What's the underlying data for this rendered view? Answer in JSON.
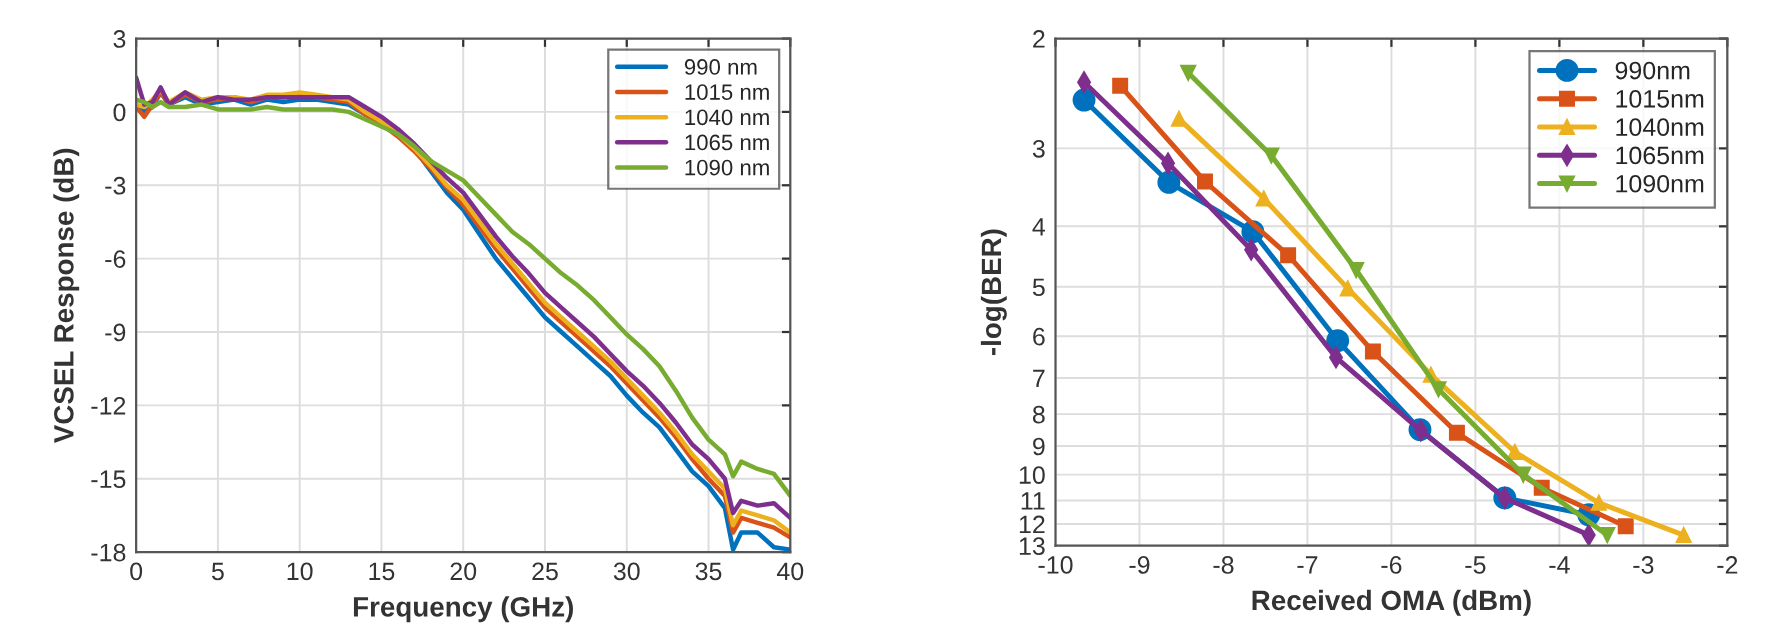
{
  "chart_data": [
    {
      "type": "line",
      "xlabel": "Frequency (GHz)",
      "ylabel": "VCSEL Response (dB)",
      "xlim": [
        0,
        40
      ],
      "xticks": [
        0,
        5,
        10,
        15,
        20,
        25,
        30,
        35,
        40
      ],
      "ylim": [
        -18,
        3
      ],
      "yticks": [
        -18,
        -15,
        -12,
        -9,
        -6,
        -3,
        0,
        3
      ],
      "grid": true,
      "legend": "top right",
      "marker": "none",
      "line_style": "solid",
      "x": [
        0,
        0.5,
        1,
        1.5,
        2,
        3,
        4,
        5,
        6,
        7,
        8,
        9,
        10,
        11,
        12,
        13,
        14,
        15,
        16,
        17,
        18,
        19,
        20,
        21,
        22,
        23,
        24,
        25,
        26,
        27,
        28,
        29,
        30,
        31,
        32,
        33,
        34,
        35,
        36,
        36.5,
        37,
        38,
        39,
        40
      ],
      "series": [
        {
          "name": "990 nm",
          "color": "#0072bd",
          "values": [
            0.3,
            0,
            0.2,
            0.8,
            0.3,
            0.6,
            0.3,
            0.4,
            0.5,
            0.3,
            0.5,
            0.4,
            0.5,
            0.5,
            0.4,
            0.3,
            -0.1,
            -0.5,
            -0.9,
            -1.5,
            -2.4,
            -3.3,
            -4.0,
            -5.0,
            -6.0,
            -6.8,
            -7.6,
            -8.4,
            -9.0,
            -9.6,
            -10.2,
            -10.8,
            -11.6,
            -12.3,
            -12.9,
            -13.8,
            -14.7,
            -15.3,
            -16.2,
            -17.9,
            -17.2,
            -17.2,
            -17.8,
            -17.9
          ]
        },
        {
          "name": "1015 nm",
          "color": "#d95319",
          "values": [
            0.2,
            -0.2,
            0.3,
            0.8,
            0.3,
            0.7,
            0.4,
            0.5,
            0.6,
            0.4,
            0.6,
            0.6,
            0.7,
            0.6,
            0.5,
            0.4,
            -0.1,
            -0.5,
            -1.0,
            -1.6,
            -2.3,
            -3.1,
            -3.8,
            -4.7,
            -5.6,
            -6.4,
            -7.2,
            -8.0,
            -8.6,
            -9.2,
            -9.8,
            -10.4,
            -11.1,
            -11.8,
            -12.5,
            -13.3,
            -14.2,
            -15.0,
            -15.7,
            -17.2,
            -16.6,
            -16.8,
            -17.0,
            -17.4
          ]
        },
        {
          "name": "1040 nm",
          "color": "#edb120",
          "values": [
            0.3,
            0.2,
            0.5,
            0.9,
            0.4,
            0.8,
            0.5,
            0.6,
            0.6,
            0.5,
            0.7,
            0.7,
            0.8,
            0.7,
            0.6,
            0.5,
            0,
            -0.4,
            -0.9,
            -1.5,
            -2.2,
            -3.0,
            -3.6,
            -4.5,
            -5.4,
            -6.2,
            -7.0,
            -7.8,
            -8.4,
            -9.0,
            -9.6,
            -10.2,
            -10.9,
            -11.6,
            -12.3,
            -13.1,
            -14.0,
            -14.7,
            -15.4,
            -16.9,
            -16.3,
            -16.5,
            -16.7,
            -17.2
          ]
        },
        {
          "name": "1065 nm",
          "color": "#7e2f8e",
          "values": [
            1.4,
            0.3,
            0.4,
            1.0,
            0.3,
            0.8,
            0.4,
            0.6,
            0.5,
            0.5,
            0.6,
            0.6,
            0.6,
            0.6,
            0.6,
            0.6,
            0.2,
            -0.2,
            -0.7,
            -1.3,
            -2.0,
            -2.7,
            -3.3,
            -4.2,
            -5.1,
            -5.9,
            -6.6,
            -7.4,
            -8.0,
            -8.6,
            -9.2,
            -9.9,
            -10.6,
            -11.2,
            -11.9,
            -12.7,
            -13.6,
            -14.2,
            -15.0,
            -16.4,
            -15.9,
            -16.1,
            -16.0,
            -16.6
          ]
        },
        {
          "name": "1090 nm",
          "color": "#77ac30",
          "values": [
            0.5,
            0.4,
            0.2,
            0.4,
            0.2,
            0.2,
            0.3,
            0.1,
            0.1,
            0.1,
            0.2,
            0.1,
            0.1,
            0.1,
            0.1,
            0,
            -0.3,
            -0.6,
            -0.9,
            -1.4,
            -2.0,
            -2.4,
            -2.8,
            -3.5,
            -4.2,
            -4.9,
            -5.4,
            -6.0,
            -6.6,
            -7.1,
            -7.7,
            -8.4,
            -9.1,
            -9.7,
            -10.4,
            -11.4,
            -12.5,
            -13.4,
            -14.0,
            -14.9,
            -14.3,
            -14.6,
            -14.8,
            -15.7
          ]
        }
      ]
    },
    {
      "type": "line",
      "xlabel": "Received OMA (dBm)",
      "ylabel": "-log(BER)",
      "log": "y",
      "xlim": [
        -10,
        -2
      ],
      "xticks": [
        -10,
        -9,
        -8,
        -7,
        -6,
        -5,
        -4,
        -3,
        -2
      ],
      "ylim": [
        13,
        2
      ],
      "yticks": [
        2,
        3,
        4,
        5,
        6,
        7,
        8,
        9,
        10,
        11,
        12,
        13
      ],
      "grid": true,
      "legend": "top right",
      "line_style": "solid",
      "series": [
        {
          "name": "990nm",
          "color": "#0072bd",
          "marker": "circle",
          "x": [
            -9.66,
            -8.65,
            -7.65,
            -6.64,
            -5.66,
            -4.65,
            -3.65
          ],
          "values": [
            2.51,
            3.4,
            4.08,
            6.1,
            8.47,
            10.9,
            11.6
          ]
        },
        {
          "name": "1015nm",
          "color": "#d95319",
          "marker": "square",
          "x": [
            -9.23,
            -8.22,
            -7.23,
            -6.22,
            -5.22,
            -4.21,
            -3.21
          ],
          "values": [
            2.38,
            3.39,
            4.45,
            6.35,
            8.57,
            10.5,
            12.1
          ]
        },
        {
          "name": "1040nm",
          "color": "#edb120",
          "marker": "triangle",
          "x": [
            -8.53,
            -7.52,
            -6.52,
            -5.53,
            -4.53,
            -3.53,
            -2.52
          ],
          "values": [
            2.69,
            3.61,
            5.03,
            6.92,
            9.2,
            11.1,
            12.5
          ]
        },
        {
          "name": "1065nm",
          "color": "#7e2f8e",
          "marker": "diamond",
          "x": [
            -9.66,
            -8.66,
            -7.67,
            -6.66,
            -5.65,
            -4.65,
            -3.65
          ],
          "values": [
            2.35,
            3.17,
            4.36,
            6.49,
            8.5,
            10.9,
            12.5
          ]
        },
        {
          "name": "1090nm",
          "color": "#77ac30",
          "marker": "triangle_down",
          "x": [
            -8.42,
            -7.43,
            -6.42,
            -5.44,
            -4.43,
            -3.43
          ],
          "values": [
            2.27,
            3.08,
            4.7,
            7.3,
            10.0,
            12.5
          ]
        }
      ]
    }
  ]
}
